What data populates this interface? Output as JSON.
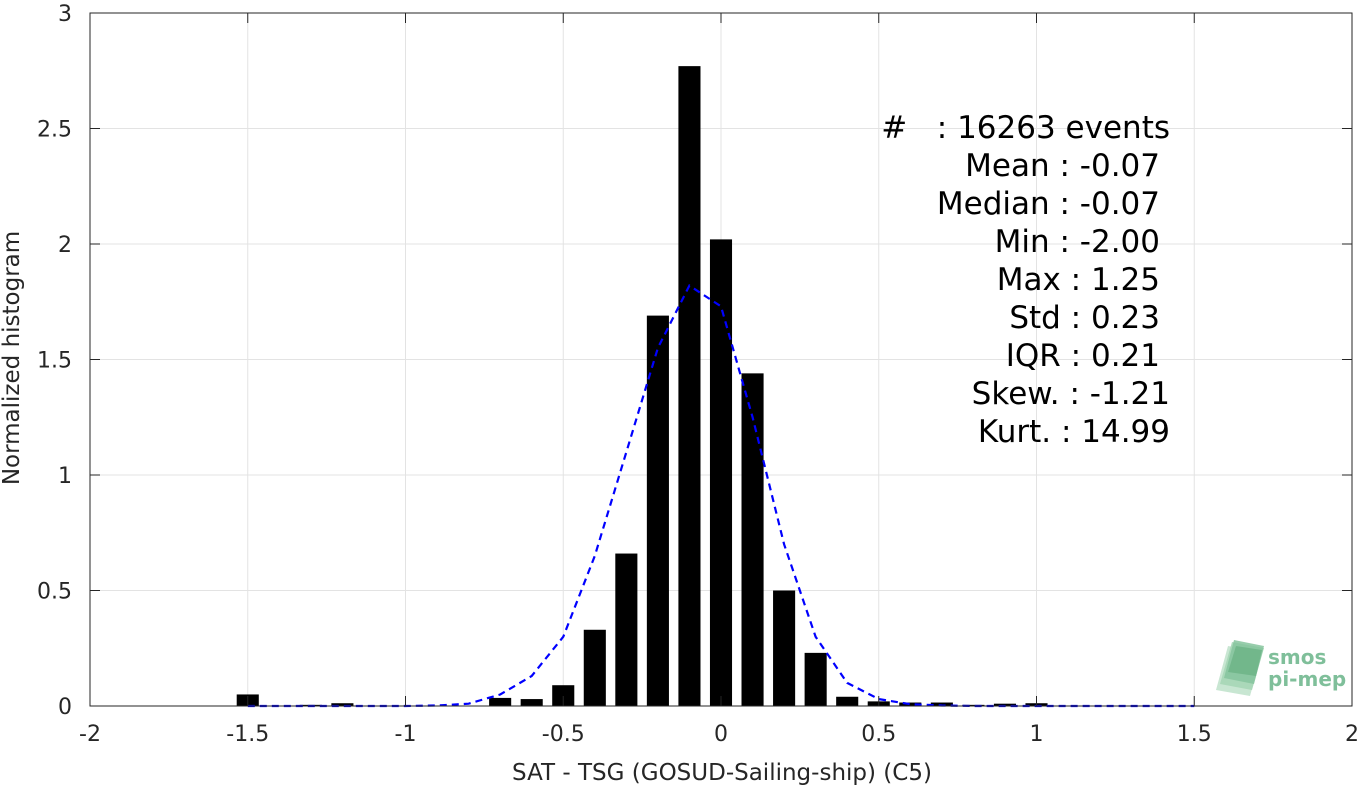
{
  "chart_data": {
    "type": "bar",
    "xlabel": "SAT - TSG (GOSUD-Sailing-ship) (C5)",
    "ylabel": "Normalized histogram",
    "xlim": [
      -2,
      2
    ],
    "ylim": [
      0,
      3
    ],
    "grid": true,
    "x_ticks": [
      -2,
      -1.5,
      -1,
      -0.5,
      0,
      0.5,
      1,
      1.5,
      2
    ],
    "x_tick_labels": [
      "-2",
      "-1.5",
      "-1",
      "-0.5",
      "0",
      "0.5",
      "1",
      "1.5",
      "2"
    ],
    "y_ticks": [
      0,
      0.5,
      1,
      1.5,
      2,
      2.5,
      3
    ],
    "y_tick_labels": [
      "0",
      "0.5",
      "1",
      "1.5",
      "2",
      "2.5",
      "3"
    ],
    "bin_width": 0.1,
    "bar_color": "#000000",
    "bars": [
      {
        "x": -1.5,
        "y": 0.05
      },
      {
        "x": -1.3,
        "y": 0.005
      },
      {
        "x": -1.2,
        "y": 0.012
      },
      {
        "x": -0.7,
        "y": 0.035
      },
      {
        "x": -0.6,
        "y": 0.03
      },
      {
        "x": -0.5,
        "y": 0.09
      },
      {
        "x": -0.4,
        "y": 0.33
      },
      {
        "x": -0.3,
        "y": 0.66
      },
      {
        "x": -0.2,
        "y": 1.69
      },
      {
        "x": -0.1,
        "y": 2.77
      },
      {
        "x": 0.0,
        "y": 2.02
      },
      {
        "x": 0.1,
        "y": 1.44
      },
      {
        "x": 0.2,
        "y": 0.5
      },
      {
        "x": 0.3,
        "y": 0.23
      },
      {
        "x": 0.4,
        "y": 0.04
      },
      {
        "x": 0.5,
        "y": 0.02
      },
      {
        "x": 0.6,
        "y": 0.015
      },
      {
        "x": 0.7,
        "y": 0.015
      },
      {
        "x": 0.8,
        "y": 0.005
      },
      {
        "x": 0.9,
        "y": 0.01
      },
      {
        "x": 1.0,
        "y": 0.012
      }
    ],
    "fit_curve": {
      "style": "dashed",
      "color": "#0000ff",
      "x": [
        -1.5,
        -1.4,
        -1.3,
        -1.2,
        -1.1,
        -1.0,
        -0.9,
        -0.8,
        -0.7,
        -0.6,
        -0.5,
        -0.4,
        -0.3,
        -0.2,
        -0.1,
        0.0,
        0.1,
        0.2,
        0.3,
        0.4,
        0.5,
        0.6,
        0.7,
        0.8,
        0.9,
        1.0,
        1.1,
        1.2,
        1.3,
        1.4,
        1.5
      ],
      "y": [
        0.0,
        0.0,
        0.0,
        0.0,
        0.0,
        0.0,
        0.002,
        0.01,
        0.05,
        0.13,
        0.3,
        0.65,
        1.1,
        1.55,
        1.82,
        1.73,
        1.25,
        0.7,
        0.3,
        0.1,
        0.03,
        0.008,
        0.002,
        0.0,
        0.0,
        0.0,
        0.0,
        0.0,
        0.0,
        0.0,
        0.0
      ]
    }
  },
  "stats": [
    "#   : 16263 events",
    "Mean : -0.07",
    "Median : -0.07",
    "Min : -2.00",
    "Max : 1.25",
    "Std : 0.23",
    "IQR : 0.21",
    "Skew. : -1.21",
    "Kurt. : 14.99"
  ],
  "logo": {
    "line1": "smos",
    "line2": "pi-mep",
    "color": "#7fbf9a"
  }
}
